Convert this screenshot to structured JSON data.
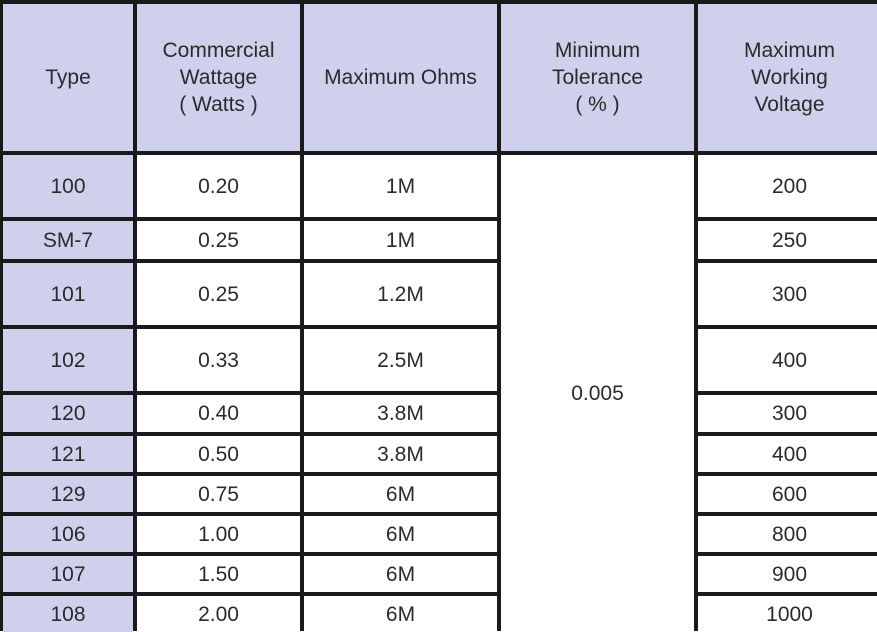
{
  "headers": [
    [
      "Type"
    ],
    [
      "Commercial",
      "Wattage",
      "( Watts )"
    ],
    [
      "Maximum Ohms"
    ],
    [
      "Minimum",
      "Tolerance",
      "( % )"
    ],
    [
      "Maximum",
      "Working",
      "Voltage"
    ]
  ],
  "tolerance": "0.005",
  "rows": [
    {
      "type": "100",
      "wattage": "0.20",
      "ohms": "1M",
      "voltage": "200"
    },
    {
      "type": "SM-7",
      "wattage": "0.25",
      "ohms": "1M",
      "voltage": "250"
    },
    {
      "type": "101",
      "wattage": "0.25",
      "ohms": "1.2M",
      "voltage": "300"
    },
    {
      "type": "102",
      "wattage": "0.33",
      "ohms": "2.5M",
      "voltage": "400"
    },
    {
      "type": "120",
      "wattage": "0.40",
      "ohms": "3.8M",
      "voltage": "300"
    },
    {
      "type": "121",
      "wattage": "0.50",
      "ohms": "3.8M",
      "voltage": "400"
    },
    {
      "type": "129",
      "wattage": "0.75",
      "ohms": "6M",
      "voltage": "600"
    },
    {
      "type": "106",
      "wattage": "1.00",
      "ohms": "6M",
      "voltage": "800"
    },
    {
      "type": "107",
      "wattage": "1.50",
      "ohms": "6M",
      "voltage": "900"
    },
    {
      "type": "108",
      "wattage": "2.00",
      "ohms": "6M",
      "voltage": "1000"
    }
  ]
}
